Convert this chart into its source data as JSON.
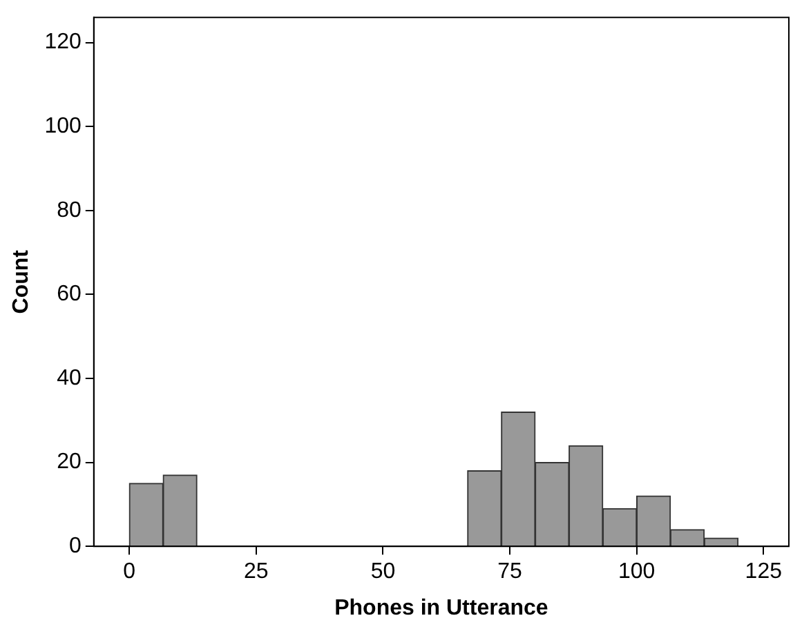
{
  "chart_data": {
    "type": "histogram",
    "xlabel": "Phones in Utterance",
    "ylabel": "Count",
    "bins": [
      0,
      6.67,
      13.33,
      20,
      26.67,
      33.33,
      40,
      46.67,
      53.33,
      60,
      66.67,
      73.33,
      80,
      86.67,
      93.33,
      100,
      106.67,
      113.33,
      120
    ],
    "values": [
      15,
      17,
      0,
      0,
      0,
      0,
      0,
      0,
      0,
      0,
      18,
      32,
      20,
      24,
      9,
      12,
      4,
      2
    ],
    "color": "#999999",
    "xlim": [
      -7,
      130
    ],
    "xticks": [
      0,
      25,
      50,
      75,
      100,
      125
    ],
    "ylim": [
      0,
      126
    ],
    "yticks": [
      0,
      20,
      40,
      60,
      80,
      100,
      120
    ],
    "grid": false,
    "legend": false
  }
}
